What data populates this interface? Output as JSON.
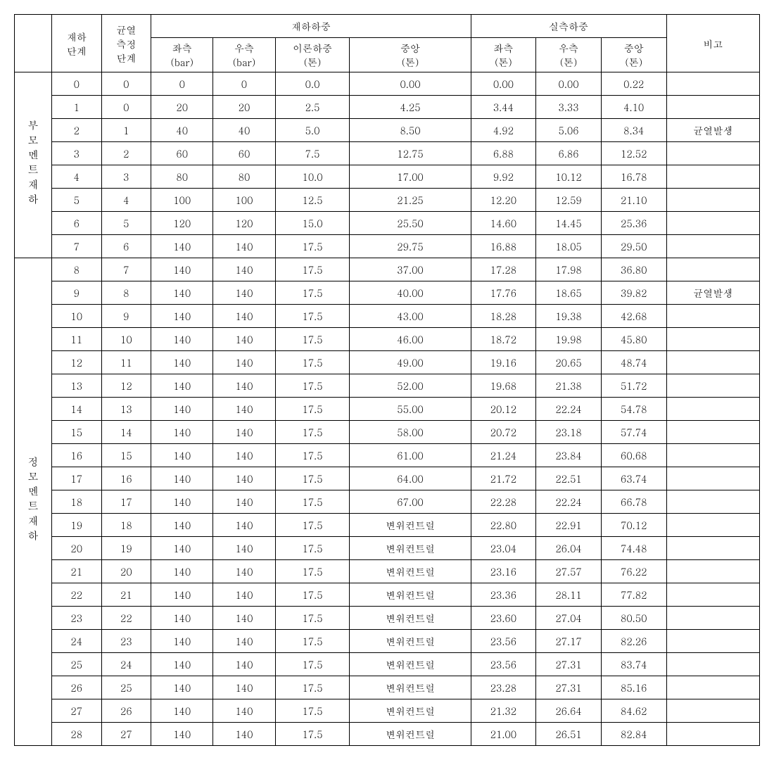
{
  "headers": {
    "empty": "",
    "stage": "재하\n단계",
    "crack_stage": "균열\n측정\n단계",
    "load_group": "재하하중",
    "measured_group": "실측하중",
    "note": "비고",
    "left_bar": "좌측\n(bar)",
    "right_bar": "우측\n(bar)",
    "theory_ton": "이론하중\n(톤)",
    "center_ton": "중앙\n(톤)",
    "m_left_ton": "좌측\n(톤)",
    "m_right_ton": "우측\n(톤)",
    "m_center_ton": "중앙\n(톤)"
  },
  "sections": [
    {
      "label": "부모멘트재하",
      "rows": [
        {
          "stage": "0",
          "crack": "0",
          "l": "0",
          "r": "0",
          "th": "0.0",
          "c": "0.00",
          "ml": "0.00",
          "mr": "0.00",
          "mc": "0.22",
          "note": ""
        },
        {
          "stage": "1",
          "crack": "0",
          "l": "20",
          "r": "20",
          "th": "2.5",
          "c": "4.25",
          "ml": "3.44",
          "mr": "3.33",
          "mc": "4.10",
          "note": ""
        },
        {
          "stage": "2",
          "crack": "1",
          "l": "40",
          "r": "40",
          "th": "5.0",
          "c": "8.50",
          "ml": "4.92",
          "mr": "5.06",
          "mc": "8.34",
          "note": "균열발생"
        },
        {
          "stage": "3",
          "crack": "2",
          "l": "60",
          "r": "60",
          "th": "7.5",
          "c": "12.75",
          "ml": "6.88",
          "mr": "6.86",
          "mc": "12.52",
          "note": ""
        },
        {
          "stage": "4",
          "crack": "3",
          "l": "80",
          "r": "80",
          "th": "10.0",
          "c": "17.00",
          "ml": "9.92",
          "mr": "10.12",
          "mc": "16.78",
          "note": ""
        },
        {
          "stage": "5",
          "crack": "4",
          "l": "100",
          "r": "100",
          "th": "12.5",
          "c": "21.25",
          "ml": "12.20",
          "mr": "12.59",
          "mc": "21.10",
          "note": ""
        },
        {
          "stage": "6",
          "crack": "5",
          "l": "120",
          "r": "120",
          "th": "15.0",
          "c": "25.50",
          "ml": "14.60",
          "mr": "14.45",
          "mc": "25.36",
          "note": ""
        },
        {
          "stage": "7",
          "crack": "6",
          "l": "140",
          "r": "140",
          "th": "17.5",
          "c": "29.75",
          "ml": "16.88",
          "mr": "18.05",
          "mc": "29.50",
          "note": ""
        }
      ]
    },
    {
      "label": "정모멘트재하",
      "rows": [
        {
          "stage": "8",
          "crack": "7",
          "l": "140",
          "r": "140",
          "th": "17.5",
          "c": "37.00",
          "ml": "17.28",
          "mr": "17.98",
          "mc": "36.80",
          "note": ""
        },
        {
          "stage": "9",
          "crack": "8",
          "l": "140",
          "r": "140",
          "th": "17.5",
          "c": "40.00",
          "ml": "17.76",
          "mr": "18.65",
          "mc": "39.82",
          "note": "균열발생"
        },
        {
          "stage": "10",
          "crack": "9",
          "l": "140",
          "r": "140",
          "th": "17.5",
          "c": "43.00",
          "ml": "18.28",
          "mr": "19.38",
          "mc": "42.68",
          "note": ""
        },
        {
          "stage": "11",
          "crack": "10",
          "l": "140",
          "r": "140",
          "th": "17.5",
          "c": "46.00",
          "ml": "18.72",
          "mr": "19.98",
          "mc": "45.80",
          "note": ""
        },
        {
          "stage": "12",
          "crack": "11",
          "l": "140",
          "r": "140",
          "th": "17.5",
          "c": "49.00",
          "ml": "19.16",
          "mr": "20.65",
          "mc": "48.74",
          "note": ""
        },
        {
          "stage": "13",
          "crack": "12",
          "l": "140",
          "r": "140",
          "th": "17.5",
          "c": "52.00",
          "ml": "19.68",
          "mr": "21.38",
          "mc": "51.72",
          "note": ""
        },
        {
          "stage": "14",
          "crack": "13",
          "l": "140",
          "r": "140",
          "th": "17.5",
          "c": "55.00",
          "ml": "20.12",
          "mr": "22.24",
          "mc": "54.78",
          "note": ""
        },
        {
          "stage": "15",
          "crack": "14",
          "l": "140",
          "r": "140",
          "th": "17.5",
          "c": "58.00",
          "ml": "20.72",
          "mr": "23.18",
          "mc": "57.74",
          "note": ""
        },
        {
          "stage": "16",
          "crack": "15",
          "l": "140",
          "r": "140",
          "th": "17.5",
          "c": "61.00",
          "ml": "21.24",
          "mr": "23.84",
          "mc": "60.68",
          "note": ""
        },
        {
          "stage": "17",
          "crack": "16",
          "l": "140",
          "r": "140",
          "th": "17.5",
          "c": "64.00",
          "ml": "21.72",
          "mr": "22.51",
          "mc": "63.74",
          "note": ""
        },
        {
          "stage": "18",
          "crack": "17",
          "l": "140",
          "r": "140",
          "th": "17.5",
          "c": "67.00",
          "ml": "22.28",
          "mr": "22.24",
          "mc": "66.78",
          "note": ""
        },
        {
          "stage": "19",
          "crack": "18",
          "l": "140",
          "r": "140",
          "th": "17.5",
          "c": "변위컨트럴",
          "ml": "22.80",
          "mr": "22.91",
          "mc": "70.12",
          "note": ""
        },
        {
          "stage": "20",
          "crack": "19",
          "l": "140",
          "r": "140",
          "th": "17.5",
          "c": "변위컨트럴",
          "ml": "23.04",
          "mr": "26.04",
          "mc": "74.48",
          "note": ""
        },
        {
          "stage": "21",
          "crack": "20",
          "l": "140",
          "r": "140",
          "th": "17.5",
          "c": "변위컨트럴",
          "ml": "23.16",
          "mr": "27.57",
          "mc": "76.22",
          "note": ""
        },
        {
          "stage": "22",
          "crack": "21",
          "l": "140",
          "r": "140",
          "th": "17.5",
          "c": "변위컨트럴",
          "ml": "23.36",
          "mr": "28.11",
          "mc": "77.82",
          "note": ""
        },
        {
          "stage": "23",
          "crack": "22",
          "l": "140",
          "r": "140",
          "th": "17.5",
          "c": "변위컨트럴",
          "ml": "23.60",
          "mr": "27.04",
          "mc": "80.50",
          "note": ""
        },
        {
          "stage": "24",
          "crack": "23",
          "l": "140",
          "r": "140",
          "th": "17.5",
          "c": "변위컨트럴",
          "ml": "23.56",
          "mr": "27.17",
          "mc": "82.26",
          "note": ""
        },
        {
          "stage": "25",
          "crack": "24",
          "l": "140",
          "r": "140",
          "th": "17.5",
          "c": "변위컨트럴",
          "ml": "23.56",
          "mr": "27.31",
          "mc": "83.74",
          "note": ""
        },
        {
          "stage": "26",
          "crack": "25",
          "l": "140",
          "r": "140",
          "th": "17.5",
          "c": "변위컨트럴",
          "ml": "23.28",
          "mr": "27.31",
          "mc": "85.16",
          "note": ""
        },
        {
          "stage": "27",
          "crack": "26",
          "l": "140",
          "r": "140",
          "th": "17.5",
          "c": "변위컨트럴",
          "ml": "21.32",
          "mr": "26.64",
          "mc": "84.62",
          "note": ""
        },
        {
          "stage": "28",
          "crack": "27",
          "l": "140",
          "r": "140",
          "th": "17.5",
          "c": "변위컨트럴",
          "ml": "21.00",
          "mr": "26.51",
          "mc": "82.84",
          "note": ""
        }
      ]
    }
  ]
}
